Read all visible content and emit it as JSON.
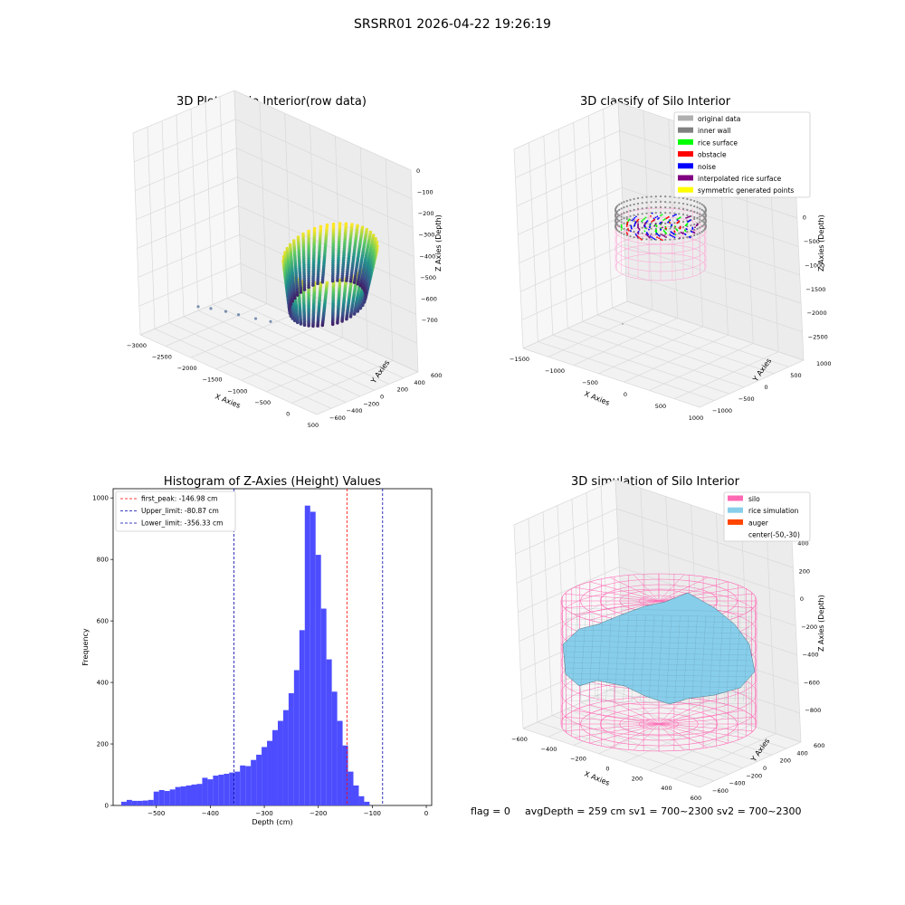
{
  "suptitle": "SRSRR01 2026-04-22 19:26:19",
  "footer": {
    "flag": "flag = 0",
    "stats": "avgDepth = 259 cm  sv1 = 700~2300  sv2 = 700~2300"
  },
  "colors": {
    "hist_bar": "#4d4dff",
    "first_peak": "#ff0000",
    "limit_lines": "#0000aa",
    "silo": "#ff69b4",
    "rice_simulation": "#87ceeb",
    "auger": "#ff4500",
    "viridis": [
      "#440154",
      "#3b528b",
      "#21918c",
      "#5ec962",
      "#fde725"
    ]
  },
  "chart_data": [
    {
      "id": "plot_raw",
      "type": "scatter",
      "projection": "3d",
      "title": "3D Plot of Silo Interior(row data)",
      "xlabel": "X Axies",
      "ylabel": "Y Axies",
      "zlabel": "Z Axies (Depth)",
      "xticks": [
        "−3000",
        "−2500",
        "−2000",
        "−1500",
        "−1000",
        "−500",
        "0",
        "500"
      ],
      "yticks": [
        "−600",
        "−400",
        "−200",
        "0",
        "200",
        "400",
        "600"
      ],
      "zticks": [
        "0",
        "−100",
        "−200",
        "−300",
        "−400",
        "−500",
        "−600",
        "−700"
      ],
      "colormap": "viridis",
      "outlier_points": [
        [
          -2900,
          -80,
          -700
        ],
        [
          -2650,
          -60,
          -690
        ],
        [
          -2350,
          -40,
          -680
        ],
        [
          -2100,
          -20,
          -675
        ],
        [
          -1750,
          0,
          -665
        ],
        [
          -1450,
          20,
          -655
        ]
      ]
    },
    {
      "id": "plot_classify",
      "type": "scatter",
      "projection": "3d",
      "title": "3D classify of Silo Interior",
      "xlabel": "X Axies",
      "ylabel": "Y Axies",
      "zlabel": "Z Axies (Depth)",
      "xticks": [
        "−1500",
        "−1000",
        "−500",
        "0",
        "500",
        "1000"
      ],
      "yticks": [
        "−1000",
        "−500",
        "0",
        "500",
        "1000"
      ],
      "zticks": [
        "0",
        "−500",
        "−1000",
        "−1500",
        "−2000",
        "−2500"
      ],
      "legend_position": "top-right",
      "legend": [
        {
          "label": "original data",
          "color": "#b0b0b0"
        },
        {
          "label": "inner wall",
          "color": "#808080"
        },
        {
          "label": "rice surface",
          "color": "#00ff00"
        },
        {
          "label": "obstacle",
          "color": "#ff0000"
        },
        {
          "label": "noise",
          "color": "#0000ff"
        },
        {
          "label": "interpolated rice surface",
          "color": "#800080"
        },
        {
          "label": "symmetric generated points",
          "color": "#ffff00"
        }
      ]
    },
    {
      "id": "histogram",
      "type": "bar",
      "title": "Histogram of Z-Axies (Height) Values",
      "xlabel": "Depth (cm)",
      "ylabel": "Frequency",
      "xlim": [
        -580,
        10
      ],
      "ylim": [
        0,
        1030
      ],
      "xticks": [
        -500,
        -400,
        -300,
        -200,
        -100,
        0
      ],
      "xtick_labels": [
        "−500",
        "−400",
        "−300",
        "−200",
        "−100",
        "0"
      ],
      "yticks": [
        0,
        200,
        400,
        600,
        800,
        1000
      ],
      "yticks_labels": [
        "0",
        "200",
        "400",
        "600",
        "800",
        "1000"
      ],
      "bin_start": -565,
      "bin_width": 10,
      "values": [
        12,
        18,
        15,
        15,
        16,
        18,
        45,
        50,
        47,
        52,
        60,
        62,
        65,
        68,
        70,
        90,
        85,
        97,
        100,
        103,
        107,
        110,
        130,
        128,
        148,
        165,
        190,
        210,
        245,
        275,
        310,
        365,
        440,
        570,
        975,
        955,
        815,
        640,
        475,
        370,
        275,
        195,
        110,
        65,
        30,
        12
      ],
      "legend_position": "upper-left",
      "vlines": [
        {
          "label": "first_peak: -146.98 cm",
          "x": -146.98,
          "color": "#ff0000"
        },
        {
          "label": "Upper_limit: -80.87 cm",
          "x": -80.87,
          "color": "#0000aa"
        },
        {
          "label": "Lower_limit: -356.33 cm",
          "x": -356.33,
          "color": "#0000aa"
        }
      ]
    },
    {
      "id": "plot_sim",
      "type": "surface",
      "projection": "3d",
      "title": "3D simulation of Silo Interior",
      "xlabel": "X Axies",
      "ylabel": "Y Axies",
      "zlabel": "Z Axies (Depth)",
      "xticks": [
        "−600",
        "−400",
        "−200",
        "0",
        "200",
        "400",
        "600"
      ],
      "yticks": [
        "−600",
        "−400",
        "−200",
        "0",
        "200",
        "400",
        "600"
      ],
      "zticks": [
        "400",
        "200",
        "0",
        "−200",
        "−400",
        "−600",
        "−800"
      ],
      "legend_position": "top-right",
      "legend": [
        {
          "label": "silo",
          "color": "#ff69b4"
        },
        {
          "label": "rice simulation",
          "color": "#87ceeb"
        },
        {
          "label": "auger",
          "color": "#ff4500"
        },
        {
          "label": "center(-50,-30)",
          "color": ""
        }
      ]
    }
  ]
}
